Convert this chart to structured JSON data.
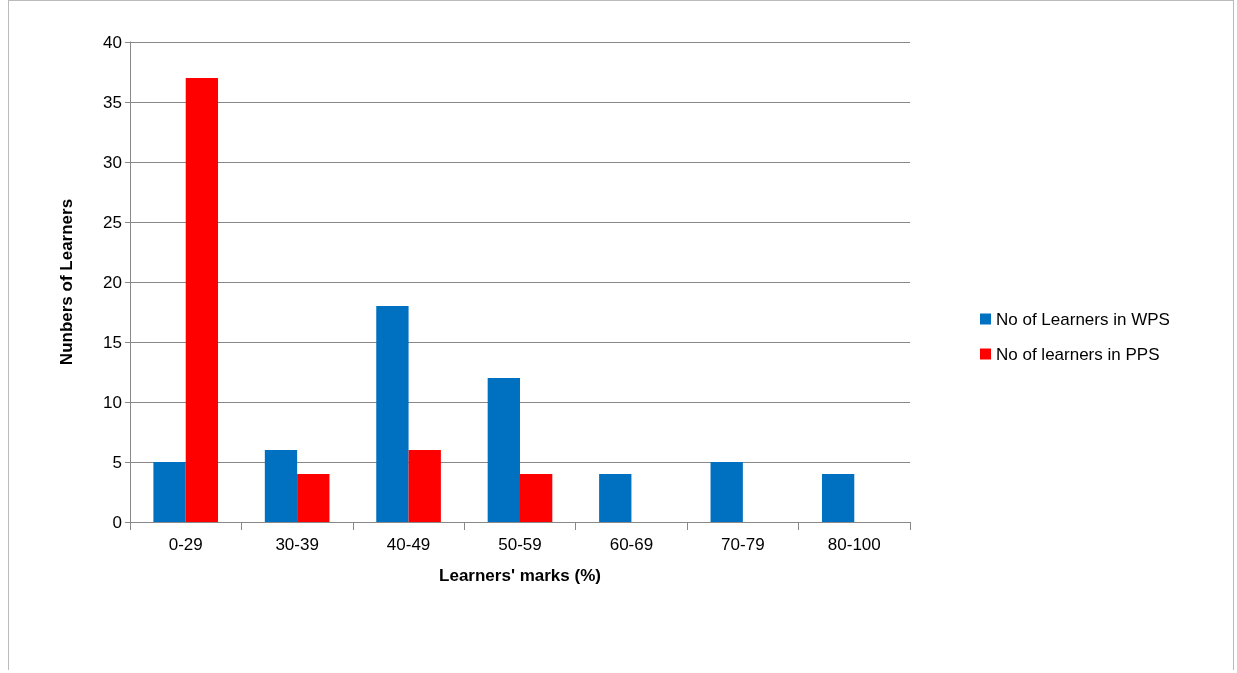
{
  "chart_data": {
    "type": "bar",
    "xlabel": "Learners' marks (%)",
    "ylabel": "Nunbers of Learners",
    "categories": [
      "0-29",
      "30-39",
      "40-49",
      "50-59",
      "60-69",
      "70-79",
      "80-100"
    ],
    "series": [
      {
        "name": "No of Learners in WPS",
        "color": "#0070c0",
        "values": [
          5,
          6,
          18,
          12,
          4,
          5,
          4
        ]
      },
      {
        "name": "No of learners in PPS",
        "color": "#ff0000",
        "values": [
          37,
          4,
          6,
          4,
          0,
          0,
          0
        ]
      }
    ],
    "ylim": [
      0,
      40
    ],
    "yticks": [
      0,
      5,
      10,
      15,
      20,
      25,
      30,
      35,
      40
    ],
    "grid": "y",
    "legend": "right"
  }
}
